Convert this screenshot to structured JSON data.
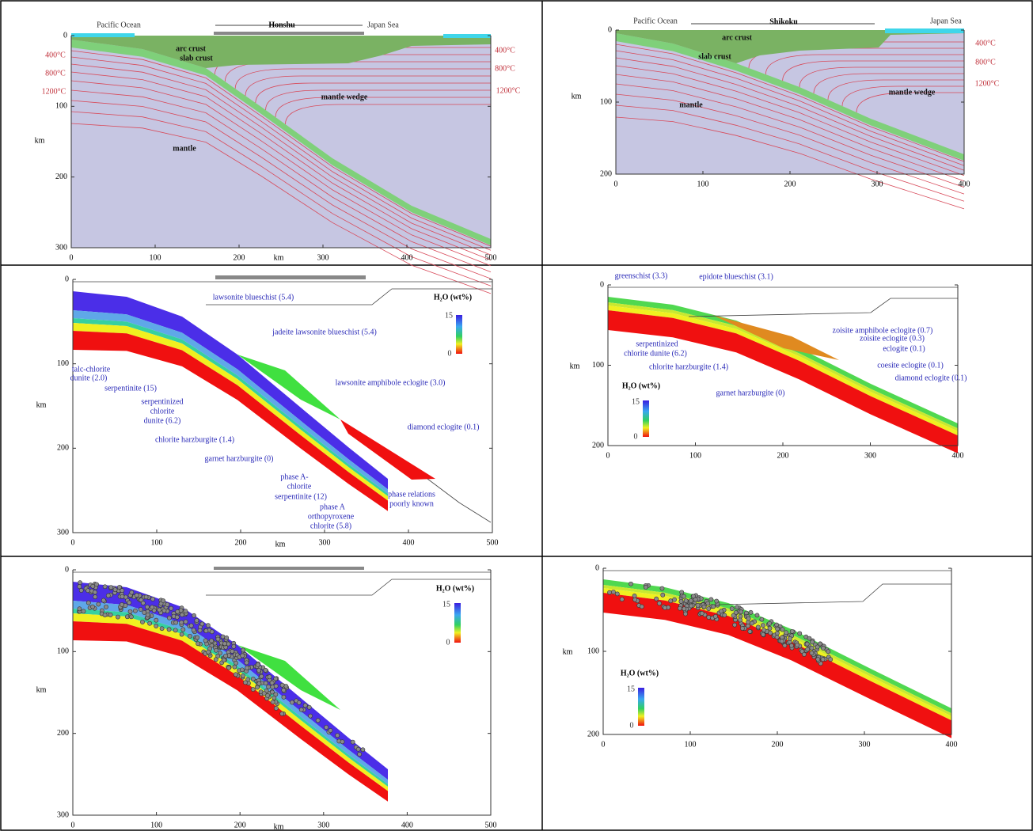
{
  "panels": [
    {
      "x_ticks": [
        "0",
        "100",
        "200",
        "300",
        "400",
        "500"
      ],
      "y_ticks": [
        "0",
        "100",
        "200",
        "300"
      ],
      "x_axis_label": "km",
      "y_axis_label": "km",
      "labels": [
        "Pacific Ocean",
        "Honshu",
        "Japan Sea",
        "arc crust",
        "slab crust",
        "mantle wedge",
        "mantle",
        "400°C",
        "800°C",
        "1200°C",
        "400°C",
        "800°C",
        "1200°C"
      ]
    },
    {
      "x_ticks": [
        "0",
        "100",
        "200",
        "300",
        "400"
      ],
      "y_ticks": [
        "0",
        "100",
        "200"
      ],
      "y_axis_label": "km",
      "labels": [
        "Pacific Ocean",
        "Shikoku",
        "Japan Sea",
        "arc crust",
        "slab crust",
        "mantle wedge",
        "mantle",
        "400°C",
        "800°C",
        "1200°C"
      ]
    },
    {
      "x_ticks": [
        "0",
        "100",
        "200",
        "300",
        "400",
        "500"
      ],
      "y_ticks": [
        "0",
        "100",
        "200",
        "300"
      ],
      "x_axis_label": "km",
      "y_axis_label": "km",
      "labels": [
        "lawsonite blueschist (5.4)",
        "jadeite lawsonite blueschist (5.4)",
        "talc-chlorite",
        "dunite (2.0)",
        "serpentinite (15)",
        "serpentinized",
        "chlorite",
        "dunite (6.2)",
        "lawsonite amphibole eclogite (3.0)",
        "chlorite harzburgite (1.4)",
        "diamond eclogite (0.1)",
        "garnet harzburgite (0)",
        "phase A-",
        "chlorite",
        "serpentinite (12)",
        "phase relations",
        "poorly known",
        "phase A",
        "orthopyroxene",
        "chlorite (5.8)",
        "H₂O (wt%)",
        "15",
        "0"
      ]
    },
    {
      "x_ticks": [
        "0",
        "100",
        "200",
        "300",
        "400"
      ],
      "y_ticks": [
        "0",
        "100",
        "200"
      ],
      "y_axis_label": "km",
      "labels": [
        "greenschist (3.3)",
        "epidote blueschist (3.1)",
        "zoisite amphibole eclogite (0.7)",
        "zoisite eclogite (0.3)",
        "eclogite (0.1)",
        "serpentinized",
        "chlorite dunite (6.2)",
        "chlorite harzburgite (1.4)",
        "coesite eclogite (0.1)",
        "diamond eclogite (0.1)",
        "garnet harzburgite (0)",
        "H₂O (wt%)",
        "15",
        "0"
      ]
    },
    {
      "x_ticks": [
        "0",
        "100",
        "200",
        "300",
        "400",
        "500"
      ],
      "y_ticks": [
        "0",
        "100",
        "200",
        "300"
      ],
      "x_axis_label": "km",
      "y_axis_label": "km",
      "labels": [
        "H₂O (wt%)",
        "15",
        "0"
      ]
    },
    {
      "x_ticks": [
        "0",
        "100",
        "200",
        "300",
        "400"
      ],
      "y_ticks": [
        "0",
        "100",
        "200"
      ],
      "y_axis_label": "km",
      "labels": [
        "H₂O (wt%)",
        "15",
        "0"
      ]
    }
  ]
}
